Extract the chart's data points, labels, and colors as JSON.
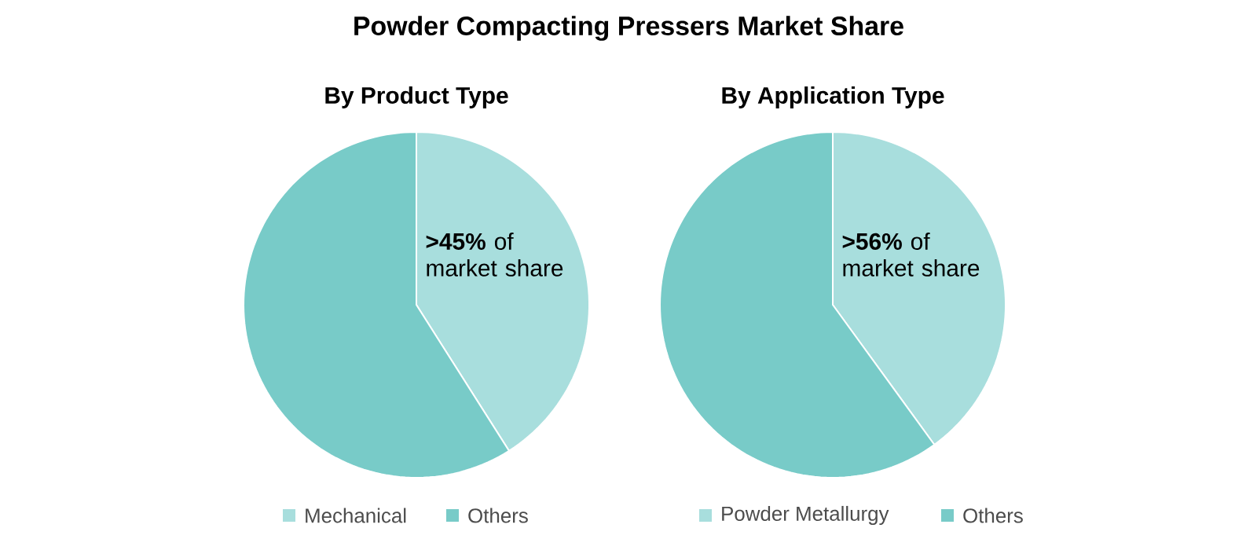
{
  "chart_data": [
    {
      "type": "pie",
      "title": "Powder Compacting Pressers Market Share",
      "subtitle": "By Product Type",
      "categories": [
        "Mechanical",
        "Others"
      ],
      "values": [
        41,
        59
      ],
      "colors": [
        "#a8dedd",
        "#78cbc8"
      ],
      "legend": "bottom",
      "annotations": [
        "**>45%** of market share"
      ]
    },
    {
      "type": "pie",
      "subtitle": "By Application Type",
      "categories": [
        "Powder Metallurgy",
        "Others"
      ],
      "values": [
        40,
        60
      ],
      "colors": [
        "#a8dedd",
        "#78cbc8"
      ],
      "legend": "bottom",
      "annotations": [
        "**>56%** of market share"
      ]
    }
  ]
}
